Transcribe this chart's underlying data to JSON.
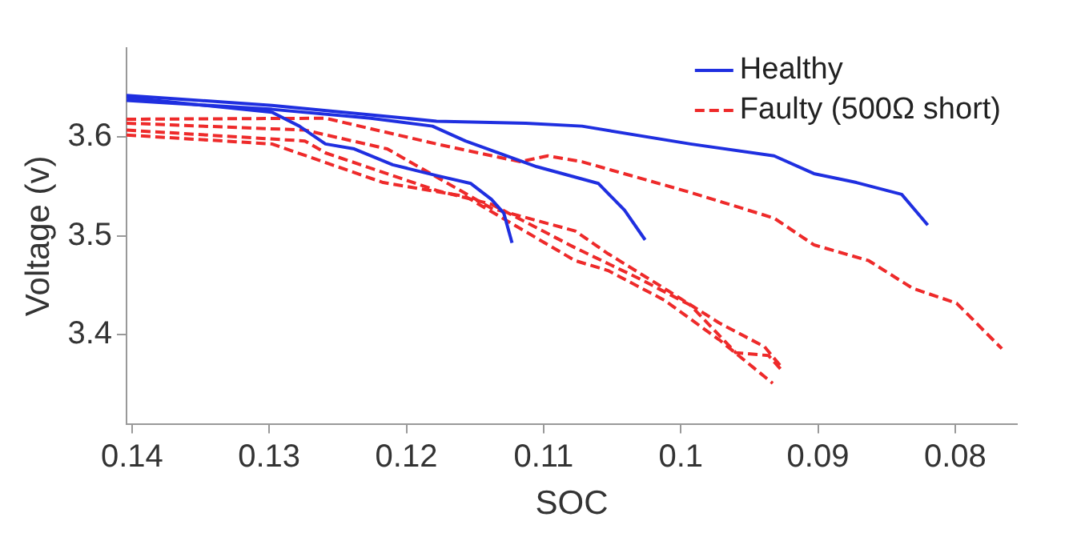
{
  "chart_data": {
    "type": "line",
    "xlabel": "SOC",
    "ylabel": "Voltage (v)",
    "xlim": [
      0.1404,
      0.0755
    ],
    "xticks": [
      0.14,
      0.13,
      0.12,
      0.11,
      0.1,
      0.09,
      0.08
    ],
    "ylim": [
      3.31,
      3.69
    ],
    "yticks": [
      3.4,
      3.5,
      3.6
    ],
    "grid": false,
    "legend": "top right",
    "marker": "none",
    "series": [
      {
        "name": "Healthy",
        "color": "#1f2fe0",
        "line_style": "solid",
        "x": [
          0.1404,
          0.1298,
          0.1278,
          0.1259,
          0.1238,
          0.121,
          0.1178,
          0.1153,
          0.1138,
          0.1129,
          0.1123
        ],
        "values": [
          3.64,
          3.625,
          3.611,
          3.593,
          3.588,
          3.572,
          3.561,
          3.553,
          3.537,
          3.523,
          3.493
        ]
      },
      {
        "color": "#1f2fe0",
        "line_style": "solid",
        "x": [
          0.1404,
          0.1298,
          0.1226,
          0.1181,
          0.1157,
          0.1105,
          0.106,
          0.1041,
          0.1026
        ],
        "values": [
          3.637,
          3.628,
          3.619,
          3.611,
          3.596,
          3.57,
          3.553,
          3.526,
          3.496
        ]
      },
      {
        "color": "#1f2fe0",
        "line_style": "solid",
        "x": [
          0.1404,
          0.1298,
          0.1178,
          0.1113,
          0.1072,
          0.0993,
          0.0932,
          0.0903,
          0.0872,
          0.0839,
          0.082
        ],
        "values": [
          3.642,
          3.632,
          3.616,
          3.614,
          3.611,
          3.593,
          3.581,
          3.563,
          3.554,
          3.542,
          3.511
        ]
      },
      {
        "name": "Faulty (500Ω short)",
        "color": "#ee2a2a",
        "line_style": "dashed",
        "x": [
          0.1404,
          0.1259,
          0.1178,
          0.1117,
          0.1097,
          0.1072,
          0.0993,
          0.0932,
          0.0903,
          0.0863,
          0.0831,
          0.0799,
          0.0766
        ],
        "values": [
          3.618,
          3.619,
          3.593,
          3.575,
          3.581,
          3.575,
          3.544,
          3.518,
          3.491,
          3.475,
          3.447,
          3.432,
          3.386
        ]
      },
      {
        "color": "#ee2a2a",
        "line_style": "dashed",
        "x": [
          0.1404,
          0.1274,
          0.1214,
          0.1138,
          0.1077,
          0.1053,
          0.1012,
          0.0972,
          0.0939,
          0.0927
        ],
        "values": [
          3.614,
          3.607,
          3.588,
          3.528,
          3.505,
          3.482,
          3.447,
          3.412,
          3.388,
          3.368
        ]
      },
      {
        "color": "#ee2a2a",
        "line_style": "dashed",
        "x": [
          0.1404,
          0.1274,
          0.1259,
          0.1178,
          0.1138,
          0.1077,
          0.1032,
          0.0993,
          0.096,
          0.0936,
          0.0927
        ],
        "values": [
          3.607,
          3.596,
          3.584,
          3.546,
          3.532,
          3.488,
          3.458,
          3.43,
          3.382,
          3.379,
          3.365
        ]
      },
      {
        "color": "#ee2a2a",
        "line_style": "dashed",
        "x": [
          0.1404,
          0.1298,
          0.1217,
          0.1157,
          0.1077,
          0.1053,
          0.1012,
          0.0972,
          0.0933
        ],
        "values": [
          3.602,
          3.593,
          3.554,
          3.54,
          3.475,
          3.465,
          3.435,
          3.395,
          3.351
        ]
      }
    ]
  }
}
